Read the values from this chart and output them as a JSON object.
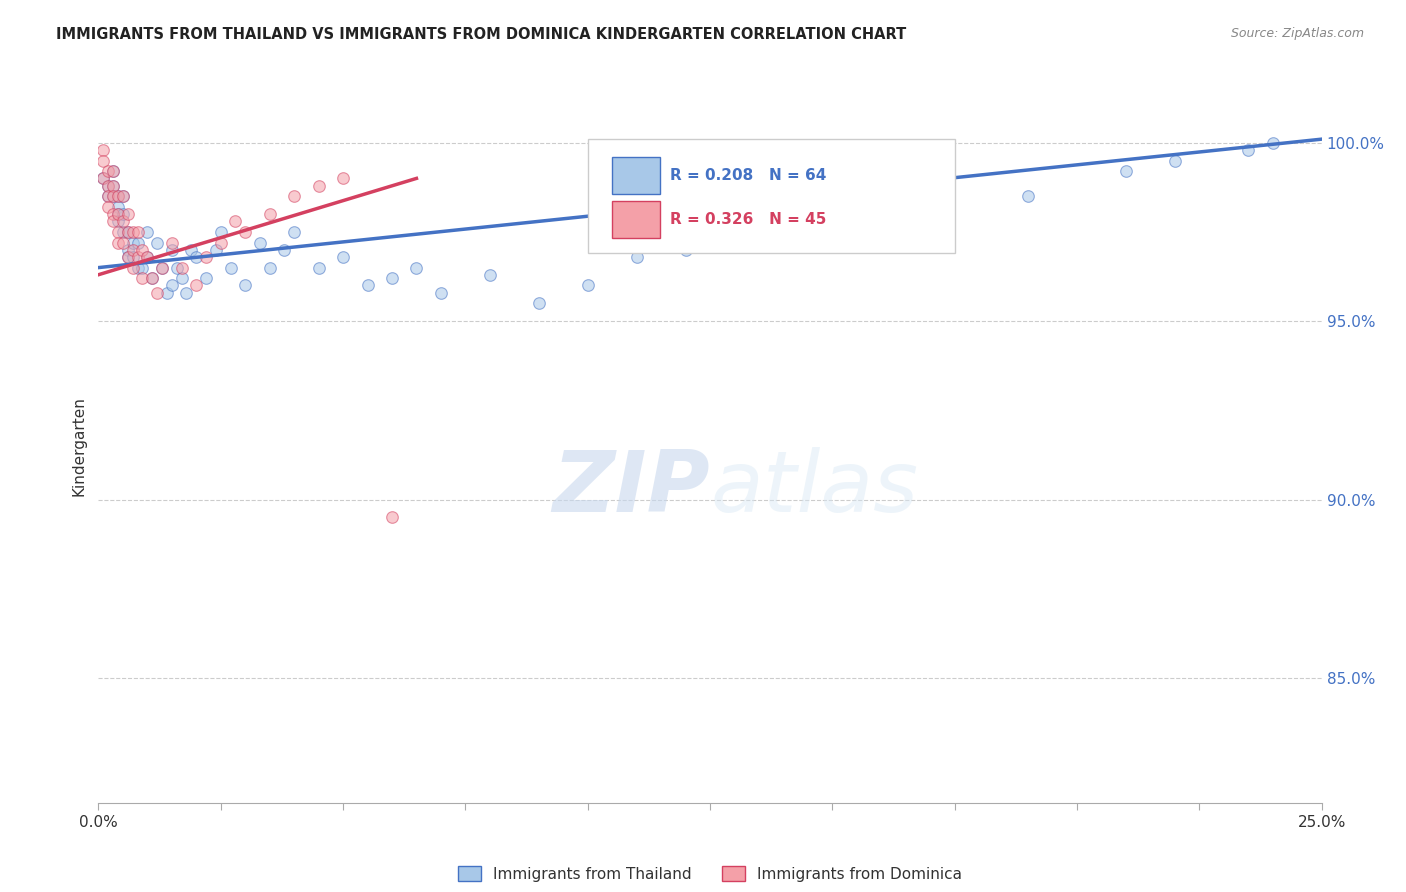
{
  "title": "IMMIGRANTS FROM THAILAND VS IMMIGRANTS FROM DOMINICA KINDERGARTEN CORRELATION CHART",
  "source": "Source: ZipAtlas.com",
  "ylabel": "Kindergarten",
  "ytick_labels": [
    "85.0%",
    "90.0%",
    "95.0%",
    "100.0%"
  ],
  "ytick_values": [
    0.85,
    0.9,
    0.95,
    1.0
  ],
  "xlim": [
    0.0,
    0.25
  ],
  "ylim": [
    0.815,
    1.015
  ],
  "legend_blue_r": "R = 0.208",
  "legend_blue_n": "N = 64",
  "legend_pink_r": "R = 0.326",
  "legend_pink_n": "N = 45",
  "legend_label_blue": "Immigrants from Thailand",
  "legend_label_pink": "Immigrants from Dominica",
  "blue_fill": "#a8c8e8",
  "pink_fill": "#f4a0a8",
  "blue_edge": "#4472c4",
  "pink_edge": "#d44060",
  "blue_line": "#4472c4",
  "pink_line": "#d44060",
  "right_tick_color": "#4472c4",
  "scatter_alpha": 0.55,
  "marker_size": 70,
  "watermark_zip": "ZIP",
  "watermark_atlas": "atlas",
  "background_color": "#ffffff",
  "grid_color": "#cccccc",
  "thailand_x": [
    0.001,
    0.002,
    0.002,
    0.003,
    0.003,
    0.003,
    0.004,
    0.004,
    0.004,
    0.004,
    0.005,
    0.005,
    0.005,
    0.006,
    0.006,
    0.006,
    0.007,
    0.007,
    0.008,
    0.008,
    0.009,
    0.01,
    0.01,
    0.011,
    0.012,
    0.013,
    0.014,
    0.015,
    0.015,
    0.016,
    0.017,
    0.018,
    0.019,
    0.02,
    0.022,
    0.024,
    0.025,
    0.027,
    0.03,
    0.033,
    0.035,
    0.038,
    0.04,
    0.045,
    0.05,
    0.055,
    0.06,
    0.065,
    0.07,
    0.08,
    0.09,
    0.1,
    0.11,
    0.12,
    0.13,
    0.14,
    0.15,
    0.16,
    0.17,
    0.19,
    0.21,
    0.22,
    0.235,
    0.24
  ],
  "thailand_y": [
    0.99,
    0.988,
    0.985,
    0.992,
    0.988,
    0.985,
    0.985,
    0.982,
    0.98,
    0.978,
    0.975,
    0.98,
    0.985,
    0.975,
    0.97,
    0.968,
    0.972,
    0.968,
    0.972,
    0.965,
    0.965,
    0.975,
    0.968,
    0.962,
    0.972,
    0.965,
    0.958,
    0.97,
    0.96,
    0.965,
    0.962,
    0.958,
    0.97,
    0.968,
    0.962,
    0.97,
    0.975,
    0.965,
    0.96,
    0.972,
    0.965,
    0.97,
    0.975,
    0.965,
    0.968,
    0.96,
    0.962,
    0.965,
    0.958,
    0.963,
    0.955,
    0.96,
    0.968,
    0.97,
    0.972,
    0.975,
    0.978,
    0.98,
    0.982,
    0.985,
    0.992,
    0.995,
    0.998,
    1.0
  ],
  "dominica_x": [
    0.001,
    0.001,
    0.001,
    0.002,
    0.002,
    0.002,
    0.002,
    0.003,
    0.003,
    0.003,
    0.003,
    0.003,
    0.004,
    0.004,
    0.004,
    0.004,
    0.005,
    0.005,
    0.005,
    0.006,
    0.006,
    0.006,
    0.007,
    0.007,
    0.007,
    0.008,
    0.008,
    0.009,
    0.009,
    0.01,
    0.011,
    0.012,
    0.013,
    0.015,
    0.017,
    0.02,
    0.022,
    0.025,
    0.028,
    0.03,
    0.035,
    0.04,
    0.045,
    0.05,
    0.06
  ],
  "dominica_y": [
    0.998,
    0.995,
    0.99,
    0.992,
    0.988,
    0.985,
    0.982,
    0.992,
    0.988,
    0.985,
    0.98,
    0.978,
    0.985,
    0.98,
    0.975,
    0.972,
    0.985,
    0.978,
    0.972,
    0.98,
    0.975,
    0.968,
    0.975,
    0.97,
    0.965,
    0.975,
    0.968,
    0.97,
    0.962,
    0.968,
    0.962,
    0.958,
    0.965,
    0.972,
    0.965,
    0.96,
    0.968,
    0.972,
    0.978,
    0.975,
    0.98,
    0.985,
    0.988,
    0.99,
    0.895
  ]
}
